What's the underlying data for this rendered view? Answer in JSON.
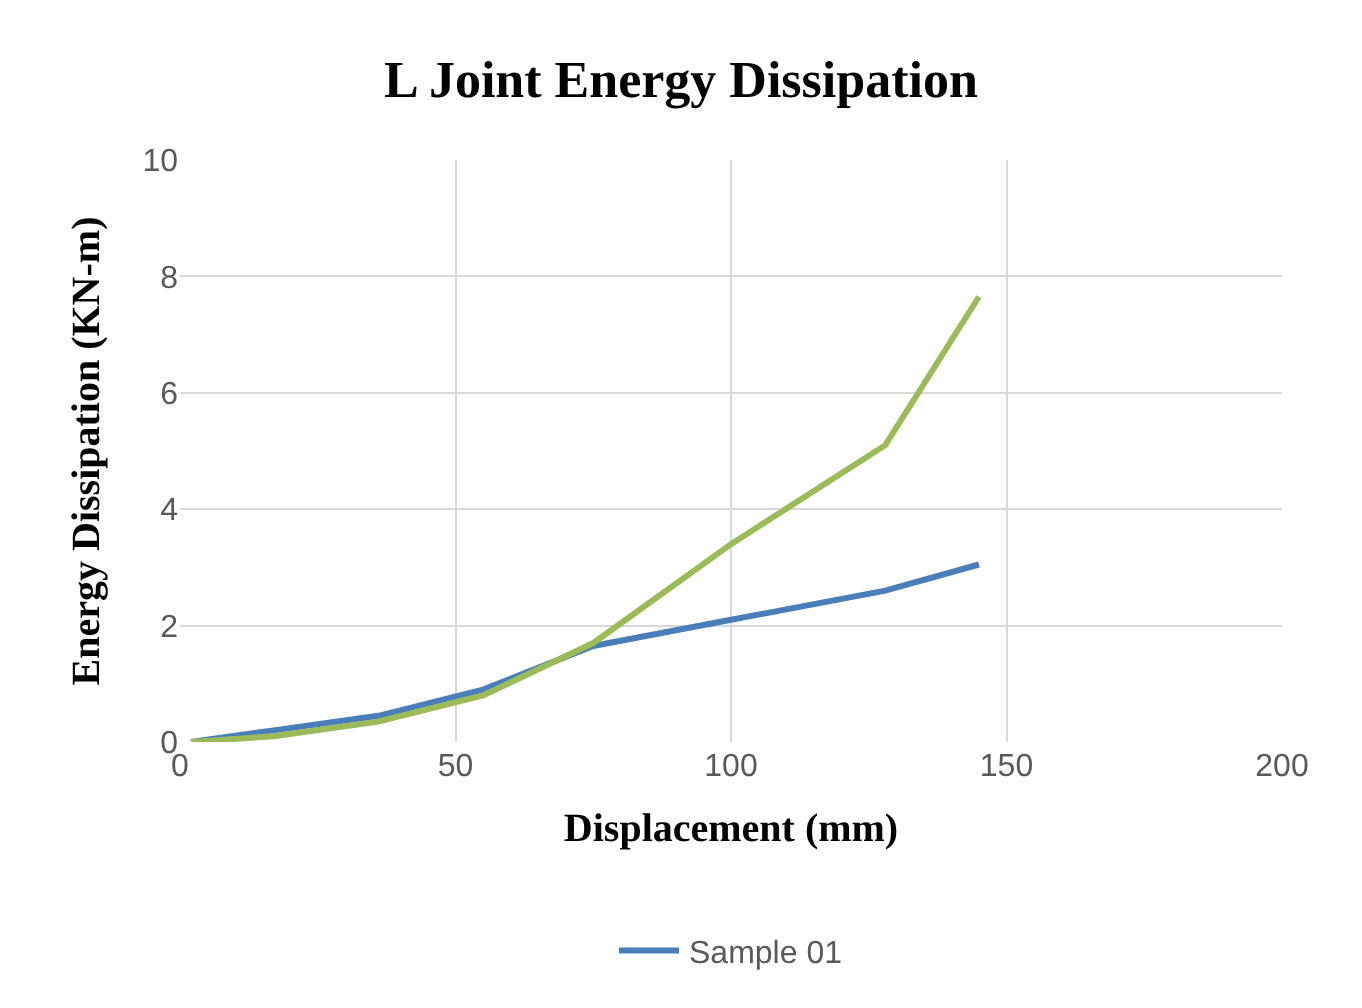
{
  "chart_data": {
    "type": "line",
    "title": "L Joint Energy Dissipation",
    "xlabel": "Displacement (mm)",
    "ylabel": "Energy Dissipation (KN-m)",
    "series": [
      {
        "name": "Sample 01",
        "color": "#4a7ebb",
        "x": [
          2,
          17,
          36,
          55,
          75,
          100,
          128,
          145
        ],
        "values": [
          0,
          0.2,
          0.45,
          0.9,
          1.65,
          2.1,
          2.6,
          3.05
        ]
      },
      {
        "color": "#9bbb59",
        "x": [
          2,
          17,
          36,
          55,
          75,
          100,
          128,
          145
        ],
        "values": [
          0,
          0.1,
          0.35,
          0.8,
          1.7,
          3.4,
          5.1,
          7.65
        ]
      }
    ],
    "xlim": [
      0,
      200
    ],
    "xticks": [
      0,
      50,
      100,
      150,
      200
    ],
    "ylim": [
      0,
      10
    ],
    "yticks": [
      0,
      2,
      4,
      6,
      8,
      10
    ],
    "grid": true,
    "legend": "bottom",
    "marker": "none",
    "line_style": "solid"
  }
}
